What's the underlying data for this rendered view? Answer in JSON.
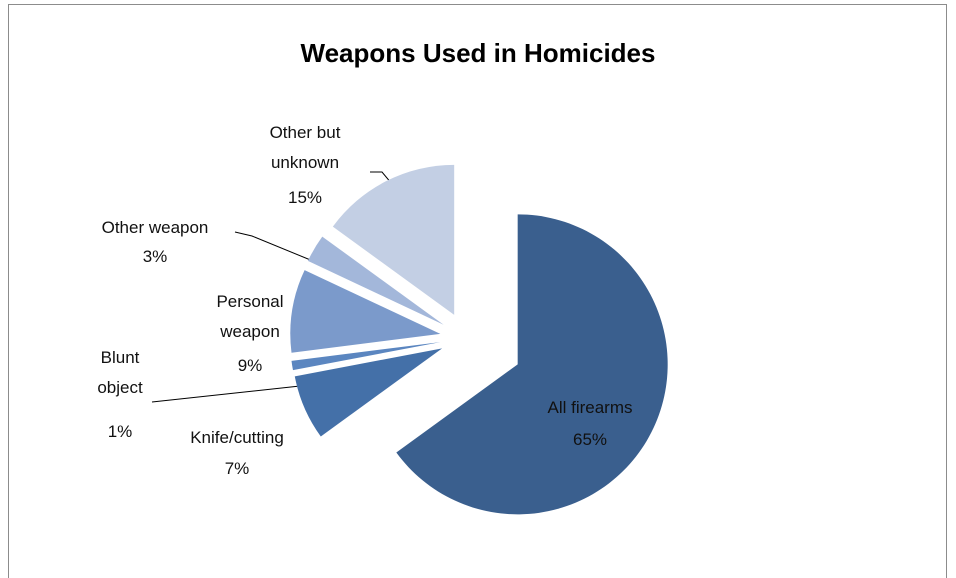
{
  "chart_data": {
    "type": "pie",
    "title": "Weapons Used in Homicides",
    "categories": [
      "All firearms",
      "Knife/cutting",
      "Blunt object",
      "Personal weapon",
      "Other weapon",
      "Other but unknown"
    ],
    "values": [
      65,
      7,
      1,
      9,
      3,
      15
    ],
    "value_labels": [
      "65%",
      "7%",
      "1%",
      "9%",
      "3%",
      "15%"
    ],
    "colors": [
      "#3a5f8e",
      "#4470a8",
      "#5b86c0",
      "#7b9acb",
      "#a3b7da",
      "#c3cfe4"
    ]
  }
}
